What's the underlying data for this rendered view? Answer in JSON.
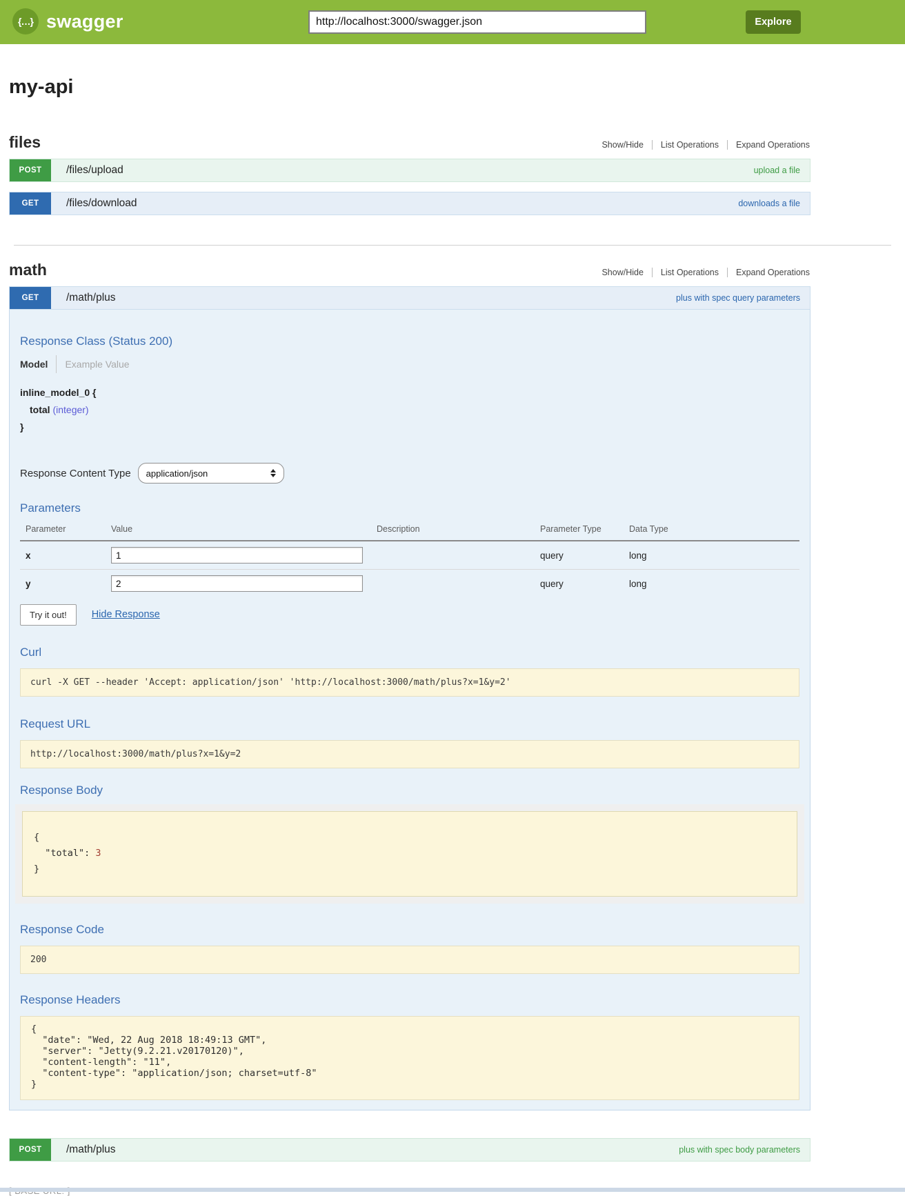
{
  "header": {
    "logo_icon": "{…}",
    "logo_text": "swagger",
    "url_value": "http://localhost:3000/swagger.json",
    "explore_label": "Explore"
  },
  "api_title": "my-api",
  "section_links": {
    "show_hide": "Show/Hide",
    "list_operations": "List Operations",
    "expand_operations": "Expand Operations"
  },
  "files": {
    "title": "files",
    "upload": {
      "method": "POST",
      "path": "/files/upload",
      "summary": "upload a file"
    },
    "download": {
      "method": "GET",
      "path": "/files/download",
      "summary": "downloads a file"
    }
  },
  "math": {
    "title": "math",
    "get_plus": {
      "method": "GET",
      "path": "/math/plus",
      "summary": "plus with spec query parameters",
      "response_class_heading": "Response Class (Status 200)",
      "tabs": {
        "model": "Model",
        "example_value": "Example Value"
      },
      "model": {
        "signature_open": "inline_model_0 {",
        "property_name": "total",
        "property_type": "(integer)",
        "signature_close": "}"
      },
      "response_content_type": {
        "label": "Response Content Type",
        "selected": "application/json"
      },
      "parameters": {
        "heading": "Parameters",
        "columns": [
          "Parameter",
          "Value",
          "Description",
          "Parameter Type",
          "Data Type"
        ],
        "rows": [
          {
            "name": "x",
            "value": "1",
            "description": "",
            "parameter_type": "query",
            "data_type": "long"
          },
          {
            "name": "y",
            "value": "2",
            "description": "",
            "parameter_type": "query",
            "data_type": "long"
          }
        ]
      },
      "try_it_out_label": "Try it out!",
      "hide_response_label": "Hide Response",
      "curl": {
        "heading": "Curl",
        "command": "curl -X GET --header 'Accept: application/json' 'http://localhost:3000/math/plus?x=1&y=2'"
      },
      "request_url": {
        "heading": "Request URL",
        "value": "http://localhost:3000/math/plus?x=1&y=2"
      },
      "response_body": {
        "heading": "Response Body",
        "prefix": "{\n  \"total\": ",
        "value": "3",
        "suffix": "\n}"
      },
      "response_code": {
        "heading": "Response Code",
        "value": "200"
      },
      "response_headers": {
        "heading": "Response Headers",
        "text": "{\n  \"date\": \"Wed, 22 Aug 2018 18:49:13 GMT\",\n  \"server\": \"Jetty(9.2.21.v20170120)\",\n  \"content-length\": \"11\",\n  \"content-type\": \"application/json; charset=utf-8\"\n}"
      }
    },
    "post_plus": {
      "method": "POST",
      "path": "/math/plus",
      "summary": "plus with spec body parameters"
    }
  },
  "footer": {
    "base_url": "[ BASE URL: ]"
  },
  "colors": {
    "header_green": "#8cb93c",
    "explore_button_green": "#587c1e",
    "post_green": "#3f9c45",
    "get_blue": "#2f6bb0",
    "heading_blue": "#3e6fb2",
    "panel_bg_blue": "#e9f2f9",
    "code_box_cream": "#fcf6db"
  }
}
